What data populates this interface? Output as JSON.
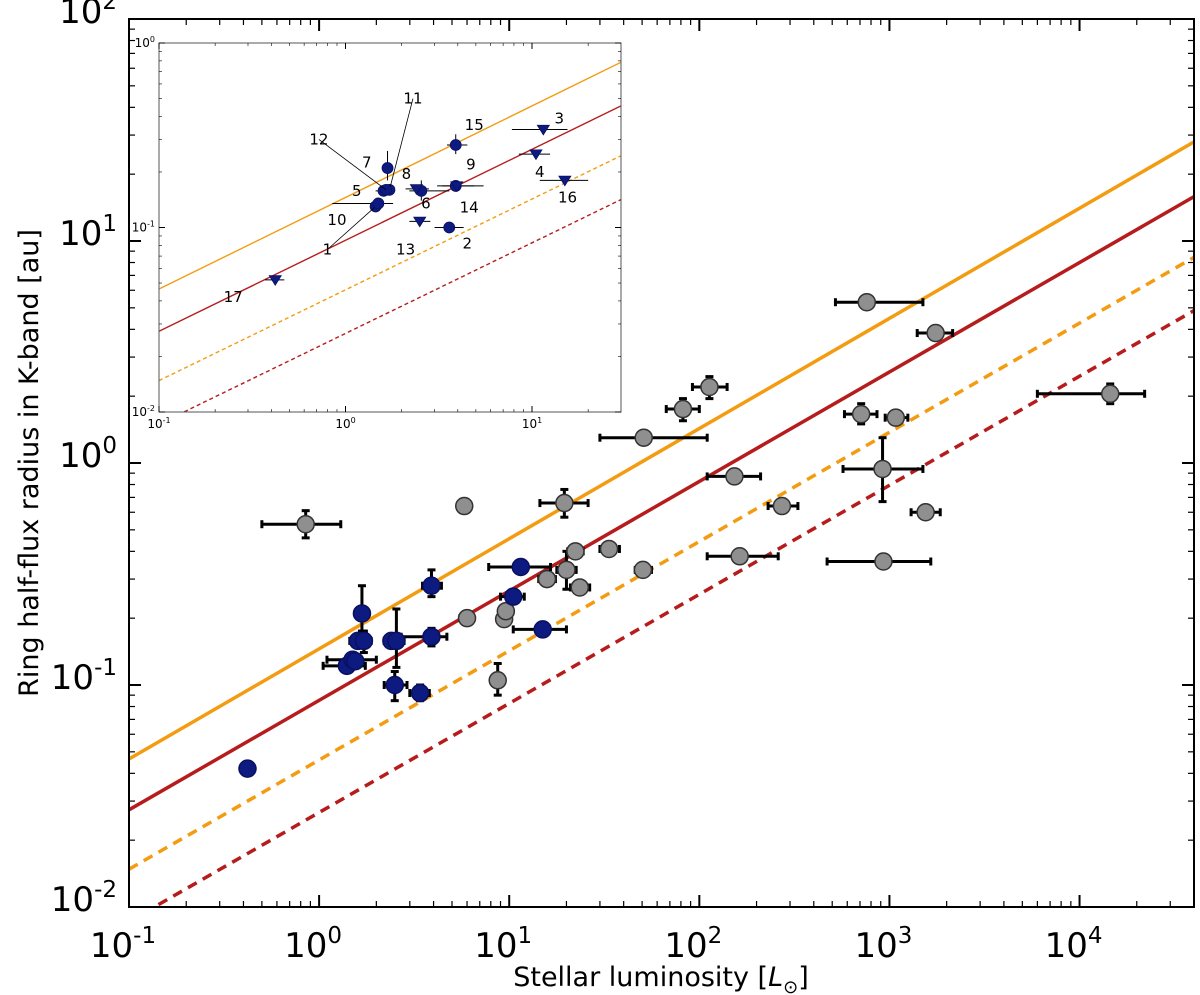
{
  "chart_data": {
    "type": "scatter",
    "title": "",
    "xlabel": "Stellar luminosity [L⊙]",
    "ylabel": "Ring half-flux radius in K-band [au]",
    "xscale": "log",
    "yscale": "log",
    "xlim": [
      0.1,
      40000
    ],
    "ylim": [
      0.01,
      100
    ],
    "x_ticks": [
      {
        "value": 0.1,
        "base": "10",
        "exp": "-1"
      },
      {
        "value": 1,
        "base": "10",
        "exp": "0"
      },
      {
        "value": 10,
        "base": "10",
        "exp": "1"
      },
      {
        "value": 100,
        "base": "10",
        "exp": "2"
      },
      {
        "value": 1000,
        "base": "10",
        "exp": "3"
      },
      {
        "value": 10000,
        "base": "10",
        "exp": "4"
      }
    ],
    "y_ticks": [
      {
        "value": 0.01,
        "base": "10",
        "exp": "-2"
      },
      {
        "value": 0.1,
        "base": "10",
        "exp": "-1"
      },
      {
        "value": 1,
        "base": "10",
        "exp": "0"
      },
      {
        "value": 10,
        "base": "10",
        "exp": "1"
      },
      {
        "value": 100,
        "base": "10",
        "exp": "2"
      }
    ],
    "lines": [
      {
        "name": "orange-solid",
        "color": "#f39c12",
        "dash": "solid",
        "points": [
          [
            0.1,
            0.0464
          ],
          [
            40000,
            27.95
          ]
        ]
      },
      {
        "name": "red-solid",
        "color": "#b71c1c",
        "dash": "solid",
        "points": [
          [
            0.1,
            0.0274
          ],
          [
            40000,
            15.84
          ]
        ]
      },
      {
        "name": "orange-dashed",
        "color": "#f39c12",
        "dash": "dashed",
        "points": [
          [
            0.1,
            0.0148
          ],
          [
            40000,
            8.44
          ]
        ]
      },
      {
        "name": "red-dashed",
        "color": "#b71c1c",
        "dash": "dashed",
        "points": [
          [
            0.1,
            0.0086
          ],
          [
            40000,
            4.86
          ]
        ]
      }
    ],
    "series": [
      {
        "name": "blue sample",
        "color": "#0d1a80",
        "points": [
          {
            "x": 0.42,
            "y": 0.042,
            "xerr": [
              0.4,
              0.45
            ]
          },
          {
            "x": 1.4,
            "y": 0.122,
            "xerr": [
              1.05,
              1.75
            ]
          },
          {
            "x": 1.5,
            "y": 0.13,
            "xerr": [
              1.1,
              2.0
            ]
          },
          {
            "x": 1.55,
            "y": 0.128,
            "xerr": [
              1.45,
              1.65
            ]
          },
          {
            "x": 1.6,
            "y": 0.158,
            "xerr": [
              1.45,
              1.75
            ]
          },
          {
            "x": 1.68,
            "y": 0.21,
            "xerr": [
              1.58,
              1.78
            ],
            "yerr": [
              0.175,
              0.28
            ]
          },
          {
            "x": 1.72,
            "y": 0.158,
            "xerr": [
              1.58,
              1.88
            ],
            "yerr": [
              0.14,
              0.175
            ]
          },
          {
            "x": 2.4,
            "y": 0.158,
            "xerr": [
              2.2,
              2.65
            ]
          },
          {
            "x": 2.55,
            "y": 0.158,
            "xerr": [
              2.3,
              2.8
            ],
            "yerr": [
              0.12,
              0.22
            ]
          },
          {
            "x": 2.5,
            "y": 0.1,
            "xerr": [
              2.2,
              2.9
            ],
            "yerr": [
              0.085,
              0.115
            ]
          },
          {
            "x": 3.4,
            "y": 0.092,
            "xerr": [
              3.0,
              3.8
            ],
            "yerr": [
              0.085,
              0.1
            ]
          },
          {
            "x": 3.9,
            "y": 0.165,
            "xerr": [
              2.7,
              4.7
            ],
            "yerr": [
              0.15,
              0.18
            ]
          },
          {
            "x": 3.9,
            "y": 0.28,
            "xerr": [
              3.5,
              4.4
            ],
            "yerr": [
              0.25,
              0.33
            ]
          },
          {
            "x": 10.5,
            "y": 0.25,
            "xerr": [
              9.0,
              12.0
            ]
          },
          {
            "x": 11.5,
            "y": 0.34,
            "xerr": [
              7.8,
              16.5
            ]
          },
          {
            "x": 15,
            "y": 0.178,
            "xerr": [
              10.5,
              20.0
            ]
          }
        ]
      },
      {
        "name": "grey sample",
        "color": "#8f8f8f",
        "points": [
          {
            "x": 0.85,
            "y": 0.53,
            "xerr": [
              0.5,
              1.3
            ],
            "yerr": [
              0.46,
              0.61
            ]
          },
          {
            "x": 5.8,
            "y": 0.64,
            "xerr": [
              5.4,
              6.2
            ]
          },
          {
            "x": 6,
            "y": 0.2,
            "xerr": [
              5.5,
              6.5
            ]
          },
          {
            "x": 8.7,
            "y": 0.105,
            "xerr": [
              8.1,
              9.4
            ],
            "yerr": [
              0.09,
              0.125
            ]
          },
          {
            "x": 9.4,
            "y": 0.198,
            "xerr": [
              8.8,
              10.0
            ]
          },
          {
            "x": 9.6,
            "y": 0.215,
            "xerr": [
              9.0,
              10.2
            ]
          },
          {
            "x": 15.8,
            "y": 0.3,
            "xerr": [
              14.3,
              17.5
            ]
          },
          {
            "x": 19.5,
            "y": 0.66,
            "xerr": [
              14.5,
              26.0
            ],
            "yerr": [
              0.57,
              0.76
            ]
          },
          {
            "x": 20,
            "y": 0.33,
            "xerr": [
              17.8,
              22.5
            ],
            "yerr": [
              0.27,
              0.4
            ]
          },
          {
            "x": 22.3,
            "y": 0.4,
            "xerr": [
              20.3,
              24.5
            ]
          },
          {
            "x": 23.5,
            "y": 0.275,
            "xerr": [
              21.0,
              26.5
            ]
          },
          {
            "x": 33.5,
            "y": 0.41,
            "xerr": [
              30.0,
              38.0
            ]
          },
          {
            "x": 50.5,
            "y": 0.33,
            "xerr": [
              46.0,
              56.0
            ]
          },
          {
            "x": 51,
            "y": 1.3,
            "xerr": [
              30.0,
              110.0
            ]
          },
          {
            "x": 82,
            "y": 1.75,
            "xerr": [
              67.0,
              100.0
            ],
            "yerr": [
              1.55,
              1.95
            ]
          },
          {
            "x": 113,
            "y": 2.2,
            "xerr": [
              92.0,
              140.0
            ],
            "yerr": [
              1.95,
              2.45
            ]
          },
          {
            "x": 153,
            "y": 0.87,
            "xerr": [
              110.0,
              210.0
            ]
          },
          {
            "x": 163,
            "y": 0.38,
            "xerr": [
              110.0,
              260.0
            ]
          },
          {
            "x": 272,
            "y": 0.64,
            "xerr": [
              230.0,
              330.0
            ]
          },
          {
            "x": 710,
            "y": 1.66,
            "xerr": [
              580.0,
              860.0
            ],
            "yerr": [
              1.5,
              1.85
            ]
          },
          {
            "x": 760,
            "y": 5.3,
            "xerr": [
              520.0,
              1500.0
            ]
          },
          {
            "x": 920,
            "y": 0.94,
            "xerr": [
              570.0,
              1500.0
            ],
            "yerr": [
              0.67,
              1.3
            ]
          },
          {
            "x": 930,
            "y": 0.36,
            "xerr": [
              470.0,
              1650.0
            ]
          },
          {
            "x": 1080,
            "y": 1.6,
            "xerr": [
              950.0,
              1250.0
            ]
          },
          {
            "x": 1550,
            "y": 0.6,
            "xerr": [
              1300.0,
              1850.0
            ]
          },
          {
            "x": 1750,
            "y": 3.85,
            "xerr": [
              1400.0,
              2150.0
            ]
          },
          {
            "x": 14500,
            "y": 2.05,
            "xerr": [
              6000.0,
              22000.0
            ],
            "yerr": [
              1.85,
              2.27
            ]
          }
        ]
      }
    ],
    "inset": {
      "xlim": [
        0.1,
        30
      ],
      "ylim": [
        0.01,
        1
      ],
      "x_ticks": [
        {
          "value": 0.1,
          "base": "10",
          "exp": "-1"
        },
        {
          "value": 1,
          "base": "10",
          "exp": "0"
        },
        {
          "value": 10,
          "base": "10",
          "exp": "1"
        }
      ],
      "y_ticks": [
        {
          "value": 0.01,
          "base": "10",
          "exp": "-2"
        },
        {
          "value": 0.1,
          "base": "10",
          "exp": "-1"
        },
        {
          "value": 1,
          "base": "10",
          "exp": "0"
        }
      ],
      "stars": [
        {
          "label": "1",
          "x": 1.45,
          "y": 0.13,
          "marker": "circle",
          "label_x": 0.8,
          "label_y": 0.076,
          "leader": true
        },
        {
          "label": "2",
          "x": 3.6,
          "y": 0.1,
          "marker": "circle",
          "label_x": 4.5,
          "label_y": 0.082,
          "xerr": [
            3.0,
            4.3
          ]
        },
        {
          "label": "3",
          "x": 11.5,
          "y": 0.34,
          "marker": "triangle",
          "label_x": 14,
          "label_y": 0.39,
          "xerr": [
            7.8,
            15.5
          ]
        },
        {
          "label": "4",
          "x": 10.5,
          "y": 0.25,
          "marker": "triangle",
          "label_x": 11,
          "label_y": 0.2,
          "xerr": [
            8.5,
            12.5
          ]
        },
        {
          "label": "5",
          "x": 1.6,
          "y": 0.158,
          "marker": "circle",
          "label_x": 1.15,
          "label_y": 0.158,
          "xerr": [
            1.45,
            1.8
          ]
        },
        {
          "label": "6",
          "x": 2.55,
          "y": 0.158,
          "marker": "circle",
          "label_x": 2.7,
          "label_y": 0.135,
          "xerr": [
            2.2,
            3.6
          ],
          "yerr": [
            0.14,
            0.18
          ]
        },
        {
          "label": "7",
          "x": 1.68,
          "y": 0.21,
          "marker": "circle",
          "label_x": 1.3,
          "label_y": 0.225,
          "yerr": [
            0.18,
            0.26
          ]
        },
        {
          "label": "8",
          "x": 2.4,
          "y": 0.162,
          "marker": "triangle",
          "label_x": 2.12,
          "label_y": 0.195,
          "xerr": [
            2.1,
            2.8
          ]
        },
        {
          "label": "9",
          "x": 3.9,
          "y": 0.168,
          "marker": "circle",
          "label_x": 4.7,
          "label_y": 0.22,
          "xerr": [
            3.3,
            4.9
          ]
        },
        {
          "label": "10",
          "x": 1.5,
          "y": 0.135,
          "marker": "circle",
          "label_x": 0.9,
          "label_y": 0.11,
          "xerr": [
            0.85,
            1.8
          ]
        },
        {
          "label": "11",
          "x": 1.72,
          "y": 0.16,
          "marker": "circle",
          "label_x": 2.3,
          "label_y": 0.5,
          "leader": true
        },
        {
          "label": "12",
          "x": 1.65,
          "y": 0.16,
          "marker": "circle",
          "label_x": 0.72,
          "label_y": 0.3,
          "leader": true
        },
        {
          "label": "13",
          "x": 2.5,
          "y": 0.108,
          "marker": "triangle",
          "label_x": 2.1,
          "label_y": 0.076,
          "xerr": [
            2.2,
            2.85
          ]
        },
        {
          "label": "14",
          "x": 3.95,
          "y": 0.168,
          "marker": "triangle",
          "label_x": 4.6,
          "label_y": 0.128,
          "xerr": [
            3.1,
            5.5
          ]
        },
        {
          "label": "15",
          "x": 3.9,
          "y": 0.28,
          "marker": "circle",
          "label_x": 4.9,
          "label_y": 0.36,
          "xerr": [
            3.5,
            4.5
          ],
          "yerr": [
            0.25,
            0.32
          ]
        },
        {
          "label": "16",
          "x": 15,
          "y": 0.18,
          "marker": "triangle",
          "label_x": 15.5,
          "label_y": 0.145,
          "xerr": [
            11.0,
            20.0
          ]
        },
        {
          "label": "17",
          "x": 0.42,
          "y": 0.052,
          "marker": "triangle",
          "label_x": 0.25,
          "label_y": 0.042,
          "xerr": [
            0.37,
            0.47
          ]
        }
      ]
    }
  }
}
